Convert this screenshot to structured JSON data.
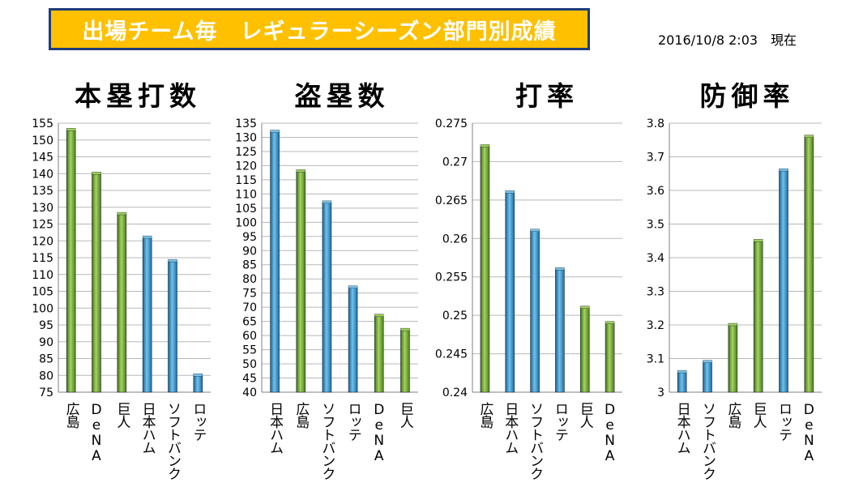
{
  "header": {
    "banner": "出場チーム毎　レギュラーシーズン部門別成績",
    "timestamp": "2016/10/8 2:03　現在"
  },
  "colors": {
    "pacific": "#3a93c8",
    "central": "#6a9d2e"
  },
  "chart_data": [
    {
      "type": "bar",
      "title": "本塁打数",
      "categories": [
        "広島",
        "DeNA",
        "巨人",
        "日本ハム",
        "ソフトバンク",
        "ロッテ"
      ],
      "values": [
        153,
        140,
        128,
        121,
        114,
        80
      ],
      "league": [
        "central",
        "central",
        "central",
        "pacific",
        "pacific",
        "pacific"
      ],
      "ylim": [
        75,
        155
      ],
      "yticks": [
        "75",
        "80",
        "85",
        "90",
        "95",
        "100",
        "105",
        "110",
        "115",
        "120",
        "125",
        "130",
        "135",
        "140",
        "145",
        "150",
        "155"
      ]
    },
    {
      "type": "bar",
      "title": "盗塁数",
      "categories": [
        "日本ハム",
        "広島",
        "ソフトバンク",
        "ロッテ",
        "DeNA",
        "巨人"
      ],
      "values": [
        132,
        118,
        107,
        77,
        67,
        62
      ],
      "league": [
        "pacific",
        "central",
        "pacific",
        "pacific",
        "central",
        "central"
      ],
      "ylim": [
        40,
        135
      ],
      "yticks": [
        "40",
        "45",
        "50",
        "55",
        "60",
        "65",
        "70",
        "75",
        "80",
        "85",
        "90",
        "95",
        "100",
        "105",
        "110",
        "115",
        "120",
        "125",
        "130",
        "135"
      ]
    },
    {
      "type": "bar",
      "title": "打率",
      "categories": [
        "広島",
        "日本ハム",
        "ソフトバンク",
        "ロッテ",
        "巨人",
        "DeNA"
      ],
      "values": [
        0.272,
        0.266,
        0.261,
        0.256,
        0.251,
        0.249
      ],
      "league": [
        "central",
        "pacific",
        "pacific",
        "pacific",
        "central",
        "central"
      ],
      "ylim": [
        0.24,
        0.275
      ],
      "yticks": [
        "0.24",
        "0.245",
        "0.25",
        "0.255",
        "0.26",
        "0.265",
        "0.27",
        "0.275"
      ]
    },
    {
      "type": "bar",
      "title": "防御率",
      "categories": [
        "日本ハム",
        "ソフトバンク",
        "広島",
        "巨人",
        "ロッテ",
        "DeNA"
      ],
      "values": [
        3.06,
        3.09,
        3.2,
        3.45,
        3.66,
        3.76
      ],
      "league": [
        "pacific",
        "pacific",
        "central",
        "central",
        "pacific",
        "central"
      ],
      "ylim": [
        3.0,
        3.8
      ],
      "yticks": [
        "3",
        "3.1",
        "3.2",
        "3.3",
        "3.4",
        "3.5",
        "3.6",
        "3.7",
        "3.8"
      ]
    }
  ]
}
